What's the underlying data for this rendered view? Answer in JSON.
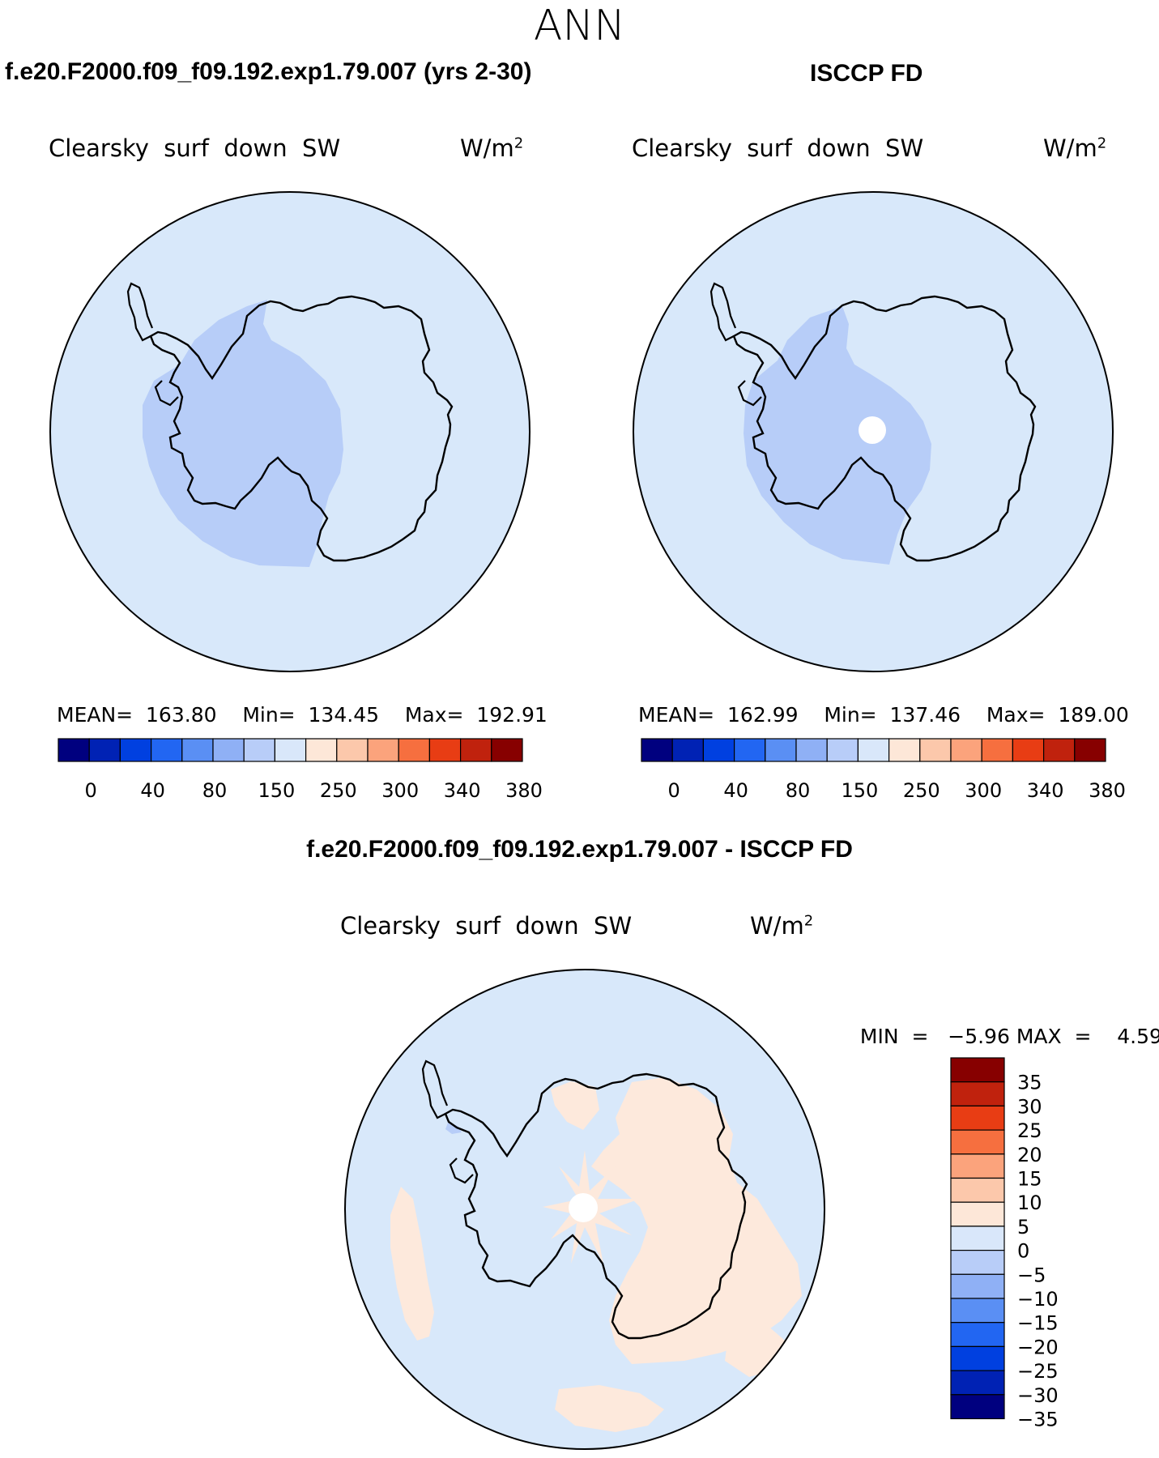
{
  "season": "ANN",
  "panels": {
    "model": {
      "title": "f.e20.F2000.f09_f09.192.exp1.79.007 (yrs 2-30)",
      "variable": "Clearsky  surf  down  SW",
      "units": "W/m",
      "units_sup": "2",
      "stats": {
        "mean_label": "MEAN=",
        "mean": "163.80",
        "min_label": "Min=",
        "min": "134.45",
        "max_label": "Max=",
        "max": "192.91"
      }
    },
    "obs": {
      "title": "ISCCP FD",
      "variable": "Clearsky  surf  down  SW",
      "units": "W/m",
      "units_sup": "2",
      "stats": {
        "mean_label": "MEAN=",
        "mean": "162.99",
        "min_label": "Min=",
        "min": "137.46",
        "max_label": "Max=",
        "max": "189.00"
      }
    },
    "diff": {
      "title": "f.e20.F2000.f09_f09.192.exp1.79.007 - ISCCP FD",
      "variable": "Clearsky  surf  down  SW",
      "units": "W/m",
      "units_sup": "2",
      "minmax": {
        "min_label": "MIN  =",
        "min": "−5.96",
        "max_label": "MAX  =",
        "max": "4.59"
      }
    }
  },
  "colorbar_levels": {
    "horizontal_colors": [
      "#00007f",
      "#0022b4",
      "#0040e0",
      "#2266f2",
      "#5a8ff4",
      "#8fb0f5",
      "#b8cdf8",
      "#d9e7fa",
      "#fde7d8",
      "#fcc8ab",
      "#fba37c",
      "#f66f3f",
      "#e83d14",
      "#c0220d",
      "#870000"
    ],
    "horizontal_ticks": [
      "0",
      "40",
      "80",
      "150",
      "250",
      "300",
      "340",
      "380"
    ],
    "vertical_colors_top_down": [
      "#870000",
      "#c0220d",
      "#e83d14",
      "#f66f3f",
      "#fba37c",
      "#fcc8ab",
      "#fde7d8",
      "#d9e7fa",
      "#b8cdf8",
      "#8fb0f5",
      "#5a8ff4",
      "#2266f2",
      "#0040e0",
      "#0022b4",
      "#00007f"
    ],
    "vertical_ticks": [
      "35",
      "30",
      "25",
      "20",
      "15",
      "10",
      "5",
      "0",
      "−5",
      "−10",
      "−15",
      "−20",
      "−25",
      "−30",
      "−35"
    ]
  },
  "map_colors": {
    "ocean": "#d8e8fa",
    "low": "#b7cdf8",
    "positive": "#fde9dc",
    "missing": "#ffffff",
    "coast": "#000000"
  }
}
